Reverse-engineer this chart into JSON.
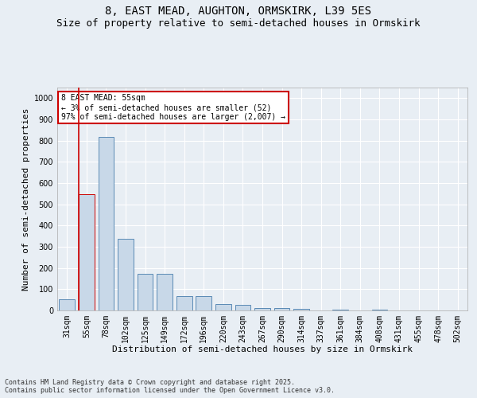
{
  "title_line1": "8, EAST MEAD, AUGHTON, ORMSKIRK, L39 5ES",
  "title_line2": "Size of property relative to semi-detached houses in Ormskirk",
  "xlabel": "Distribution of semi-detached houses by size in Ormskirk",
  "ylabel": "Number of semi-detached properties",
  "categories": [
    "31sqm",
    "55sqm",
    "78sqm",
    "102sqm",
    "125sqm",
    "149sqm",
    "172sqm",
    "196sqm",
    "220sqm",
    "243sqm",
    "267sqm",
    "290sqm",
    "314sqm",
    "337sqm",
    "361sqm",
    "384sqm",
    "408sqm",
    "431sqm",
    "455sqm",
    "478sqm",
    "502sqm"
  ],
  "values": [
    52,
    547,
    817,
    337,
    172,
    172,
    68,
    68,
    30,
    25,
    12,
    12,
    8,
    0,
    5,
    0,
    5,
    0,
    0,
    0,
    0
  ],
  "bar_color": "#c8d8e8",
  "bar_edge_color": "#5a8ab5",
  "highlight_bar_index": 1,
  "highlight_bar_edge_color": "#cc0000",
  "annotation_text": "8 EAST MEAD: 55sqm\n← 3% of semi-detached houses are smaller (52)\n97% of semi-detached houses are larger (2,007) →",
  "annotation_box_color": "#ffffff",
  "annotation_box_edge_color": "#cc0000",
  "vline_color": "#cc0000",
  "ylim": [
    0,
    1050
  ],
  "yticks": [
    0,
    100,
    200,
    300,
    400,
    500,
    600,
    700,
    800,
    900,
    1000
  ],
  "footer_line1": "Contains HM Land Registry data © Crown copyright and database right 2025.",
  "footer_line2": "Contains public sector information licensed under the Open Government Licence v3.0.",
  "bg_color": "#e8eef4",
  "plot_bg_color": "#e8eef4",
  "grid_color": "#ffffff",
  "title_fontsize": 10,
  "subtitle_fontsize": 9,
  "axis_label_fontsize": 8,
  "tick_fontsize": 7,
  "annotation_fontsize": 7,
  "footer_fontsize": 6
}
